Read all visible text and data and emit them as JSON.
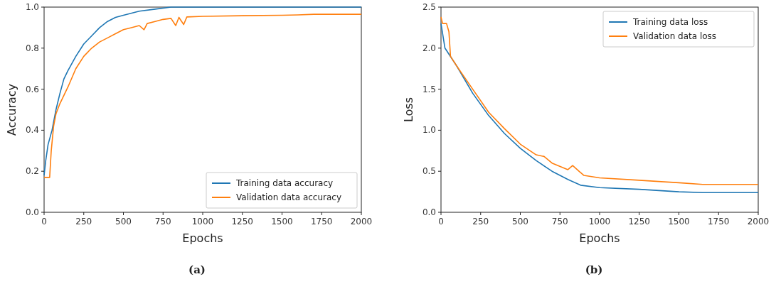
{
  "chart_data": [
    {
      "type": "line",
      "xlabel": "Epochs",
      "ylabel": "Accuracy",
      "xlim": [
        0,
        2000
      ],
      "ylim": [
        0,
        1
      ],
      "xticks": [
        0,
        250,
        500,
        750,
        1000,
        1250,
        1500,
        1750,
        2000
      ],
      "yticks": [
        {
          "value": 0,
          "label": "0.0"
        },
        0.2,
        0.4,
        0.6,
        0.8,
        {
          "value": 1,
          "label": "1.0"
        }
      ],
      "legend": "bottom right",
      "grid": false,
      "annotations": [
        "(a)"
      ],
      "series": [
        {
          "name": "Training data accuracy",
          "color": "#1f77b4",
          "x": [
            0,
            10,
            25,
            50,
            75,
            100,
            125,
            150,
            200,
            250,
            300,
            350,
            400,
            450,
            500,
            600,
            700,
            800,
            900,
            1000,
            2000
          ],
          "values": [
            0.18,
            0.25,
            0.33,
            0.4,
            0.5,
            0.58,
            0.65,
            0.69,
            0.76,
            0.82,
            0.86,
            0.9,
            0.93,
            0.95,
            0.96,
            0.98,
            0.99,
            1,
            1,
            1,
            1
          ]
        },
        {
          "name": "Validation data accuracy",
          "color": "#ff7f0e",
          "x": [
            0,
            35,
            45,
            60,
            75,
            100,
            150,
            200,
            250,
            300,
            350,
            400,
            450,
            500,
            550,
            600,
            630,
            650,
            700,
            750,
            800,
            830,
            850,
            880,
            900,
            1000,
            1250,
            1500,
            1600,
            1700,
            2000
          ],
          "values": [
            0.17,
            0.17,
            0.3,
            0.42,
            0.48,
            0.53,
            0.61,
            0.7,
            0.76,
            0.8,
            0.83,
            0.85,
            0.87,
            0.89,
            0.9,
            0.91,
            0.89,
            0.92,
            0.93,
            0.94,
            0.945,
            0.91,
            0.95,
            0.915,
            0.952,
            0.955,
            0.958,
            0.96,
            0.962,
            0.965,
            0.965
          ]
        }
      ]
    },
    {
      "type": "line",
      "xlabel": "Epochs",
      "ylabel": "Loss",
      "xlim": [
        0,
        2000
      ],
      "ylim": [
        0,
        2.5
      ],
      "xticks": [
        0,
        250,
        500,
        750,
        1000,
        1250,
        1500,
        1750,
        2000
      ],
      "yticks": [
        {
          "value": 0,
          "label": "0.0"
        },
        0.5,
        {
          "value": 1,
          "label": "1.0"
        },
        1.5,
        {
          "value": 2,
          "label": "2.0"
        },
        2.5
      ],
      "legend": "top right",
      "grid": false,
      "annotations": [
        "(b)"
      ],
      "series": [
        {
          "name": "Training data loss",
          "color": "#1f77b4",
          "x": [
            0,
            25,
            100,
            200,
            300,
            400,
            500,
            600,
            700,
            800,
            880,
            1000,
            1250,
            1500,
            1650,
            2000
          ],
          "values": [
            2.3,
            2,
            1.78,
            1.45,
            1.18,
            0.96,
            0.78,
            0.63,
            0.5,
            0.4,
            0.33,
            0.3,
            0.28,
            0.25,
            0.24,
            0.24
          ]
        },
        {
          "name": "Validation data loss",
          "color": "#ff7f0e",
          "x": [
            0,
            10,
            35,
            50,
            60,
            100,
            200,
            300,
            400,
            500,
            600,
            650,
            700,
            800,
            830,
            870,
            900,
            1000,
            1250,
            1500,
            1650,
            2000
          ],
          "values": [
            2.38,
            2.3,
            2.3,
            2.2,
            1.9,
            1.78,
            1.5,
            1.22,
            1.02,
            0.83,
            0.7,
            0.68,
            0.6,
            0.52,
            0.57,
            0.5,
            0.45,
            0.42,
            0.39,
            0.36,
            0.34,
            0.34
          ]
        }
      ]
    }
  ]
}
